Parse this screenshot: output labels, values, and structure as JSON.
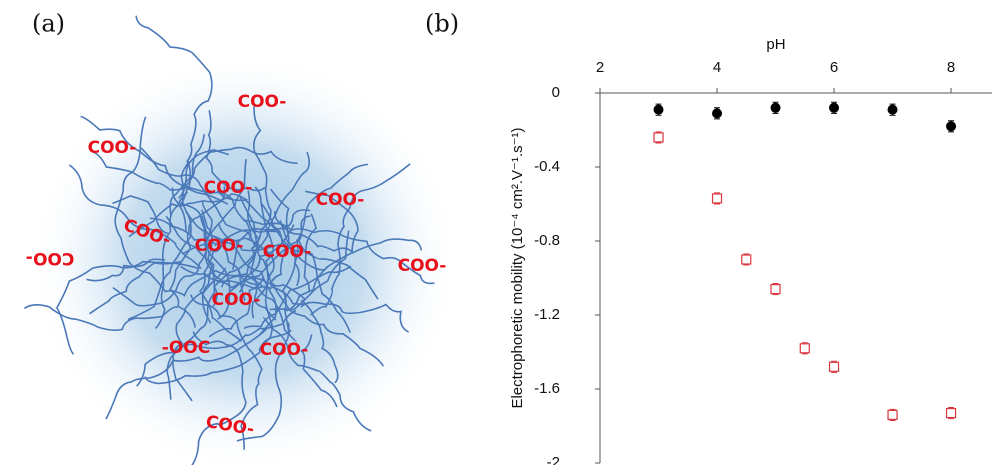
{
  "figure": {
    "panel_a": "(a)",
    "panel_b": "(b)",
    "illustration_labels": [
      "COO-",
      "COO-",
      "COO-",
      "COO-",
      "COO-",
      "COO-",
      "COO-",
      "COO-",
      "COO-",
      "COO-",
      "-OOC",
      "COO-",
      "COO-"
    ]
  },
  "chart_data": {
    "type": "scatter",
    "x_label": "pH",
    "y_label": "Electrophoretic  mobility (10⁻⁴ cm².V⁻¹.s⁻¹)",
    "xlim": [
      2,
      8.7
    ],
    "xticks": [
      2,
      4,
      6,
      8
    ],
    "ylim": [
      -2,
      0
    ],
    "yticks": [
      0,
      -0.4,
      -0.8,
      -1.2,
      -1.6,
      -2
    ],
    "series": [
      {
        "color": "#000000",
        "marker": "filled-circle",
        "x": [
          3,
          4,
          5,
          6,
          7,
          8
        ],
        "values": [
          -0.09,
          -0.11,
          -0.08,
          -0.08,
          -0.09,
          -0.18
        ],
        "errors": [
          0.03,
          0.03,
          0.03,
          0.03,
          0.03,
          0.03
        ]
      },
      {
        "color": "#d9363e",
        "marker": "open-square",
        "x": [
          3,
          4,
          4.5,
          5,
          5.5,
          6,
          7,
          8
        ],
        "values": [
          -0.24,
          -0.57,
          -0.9,
          -1.06,
          -1.38,
          -1.48,
          -1.74,
          -1.73
        ],
        "errors": [
          0.03,
          0.03,
          0.03,
          0.03,
          0.03,
          0.03,
          0.03,
          0.03
        ]
      }
    ]
  }
}
